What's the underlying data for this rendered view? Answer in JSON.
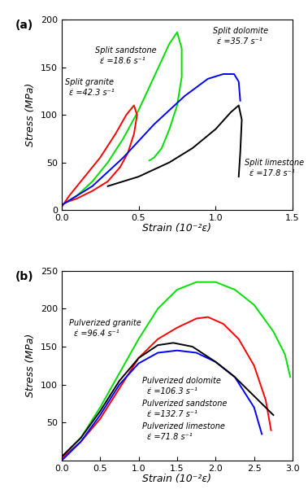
{
  "chart_data": [
    {
      "type": "line",
      "panel_label": "(a)",
      "x_label": "Strain (10⁻²ε)",
      "y_label": "Stress (MPa)",
      "xlim": [
        0,
        1.5
      ],
      "ylim": [
        0,
        200
      ],
      "xticks": [
        {
          "value": 0,
          "label": "0.0"
        },
        {
          "value": 0.5,
          "label": "0.5"
        },
        {
          "value": 1.0,
          "label": "1.0"
        },
        {
          "value": 1.5,
          "label": "1.5"
        }
      ],
      "yticks": [
        0,
        50,
        100,
        150,
        200
      ],
      "series": [
        {
          "name": "Split sandstone",
          "rate_label": "ε̇ =18.6 s⁻¹",
          "color": "#00e000",
          "x": [
            0,
            0.1,
            0.2,
            0.3,
            0.4,
            0.5,
            0.6,
            0.7,
            0.75,
            0.78,
            0.78,
            0.75,
            0.7,
            0.65,
            0.6,
            0.57
          ],
          "values": [
            5,
            15,
            30,
            50,
            75,
            105,
            140,
            175,
            187,
            170,
            140,
            110,
            85,
            65,
            55,
            52
          ]
        },
        {
          "name": "Split granite",
          "rate_label": "ε̇ =42.3 s⁻¹",
          "color": "#ff0000",
          "x": [
            0,
            0.05,
            0.15,
            0.25,
            0.35,
            0.42,
            0.47,
            0.49,
            0.47,
            0.43,
            0.38,
            0.3,
            0.2,
            0.1,
            0.03
          ],
          "values": [
            3,
            15,
            35,
            55,
            80,
            100,
            110,
            100,
            80,
            60,
            45,
            30,
            20,
            12,
            8
          ]
        },
        {
          "name": "Split dolomite",
          "rate_label": "ε̇ =35.7 s⁻¹",
          "color": "#0000ff",
          "x": [
            0,
            0.2,
            0.4,
            0.6,
            0.8,
            0.95,
            1.05,
            1.12,
            1.15,
            1.16
          ],
          "values": [
            5,
            25,
            55,
            90,
            120,
            138,
            143,
            143,
            135,
            115
          ]
        },
        {
          "name": "Split limestone",
          "rate_label": "ε̇ =17.8 s⁻¹",
          "color": "#000000",
          "x": [
            0.3,
            0.5,
            0.7,
            0.85,
            1.0,
            1.1,
            1.15,
            1.17,
            1.16,
            1.15
          ],
          "values": [
            25,
            35,
            50,
            65,
            85,
            103,
            110,
            95,
            60,
            35
          ]
        }
      ]
    },
    {
      "type": "line",
      "panel_label": "(b)",
      "x_label": "Strain (10⁻²ε)",
      "y_label": "Stress (MPa)",
      "xlim": [
        0,
        3
      ],
      "ylim": [
        0,
        250
      ],
      "xticks": [
        {
          "value": 0,
          "label": "0.0"
        },
        {
          "value": 0.5,
          "label": "0.5"
        },
        {
          "value": 1.0,
          "label": "1.0"
        },
        {
          "value": 1.5,
          "label": "1.5"
        },
        {
          "value": 2.0,
          "label": "2.0"
        },
        {
          "value": 2.5,
          "label": "2.5"
        },
        {
          "value": 3.0,
          "label": "3.0"
        }
      ],
      "yticks": [
        50,
        100,
        150,
        200,
        250
      ],
      "series": [
        {
          "name": "Pulverized granite",
          "rate_label": "ε̇ =96.4 s⁻¹",
          "color": "#00e000",
          "x": [
            0,
            0.25,
            0.5,
            0.75,
            1.0,
            1.25,
            1.5,
            1.75,
            2.0,
            2.25,
            2.5,
            2.75,
            2.9,
            2.97
          ],
          "values": [
            5,
            30,
            70,
            115,
            160,
            200,
            225,
            235,
            235,
            225,
            205,
            170,
            140,
            110
          ]
        },
        {
          "name": "Pulverized dolomite",
          "rate_label": "ε̇ =106.3 s⁻¹",
          "color": "#ff0000",
          "x": [
            0,
            0.25,
            0.5,
            0.75,
            1.0,
            1.25,
            1.5,
            1.75,
            1.9,
            2.1,
            2.3,
            2.5,
            2.65,
            2.72
          ],
          "values": [
            3,
            25,
            55,
            95,
            135,
            160,
            175,
            187,
            189,
            180,
            160,
            125,
            80,
            40
          ]
        },
        {
          "name": "Pulverized sandstone",
          "rate_label": "ε̇ =132.7 s⁻¹",
          "color": "#0000ff",
          "x": [
            0,
            0.25,
            0.5,
            0.75,
            1.0,
            1.25,
            1.5,
            1.75,
            2.0,
            2.25,
            2.5,
            2.6
          ],
          "values": [
            0,
            25,
            60,
            100,
            128,
            142,
            145,
            142,
            130,
            110,
            70,
            35
          ]
        },
        {
          "name": "Pulverized limestone",
          "rate_label": "ε̇ =71.8 s⁻¹",
          "color": "#000000",
          "x": [
            0,
            0.25,
            0.5,
            0.75,
            1.0,
            1.25,
            1.45,
            1.7,
            2.0,
            2.25,
            2.5,
            2.75
          ],
          "values": [
            5,
            30,
            65,
            105,
            135,
            152,
            155,
            150,
            130,
            110,
            85,
            60
          ]
        }
      ]
    }
  ]
}
